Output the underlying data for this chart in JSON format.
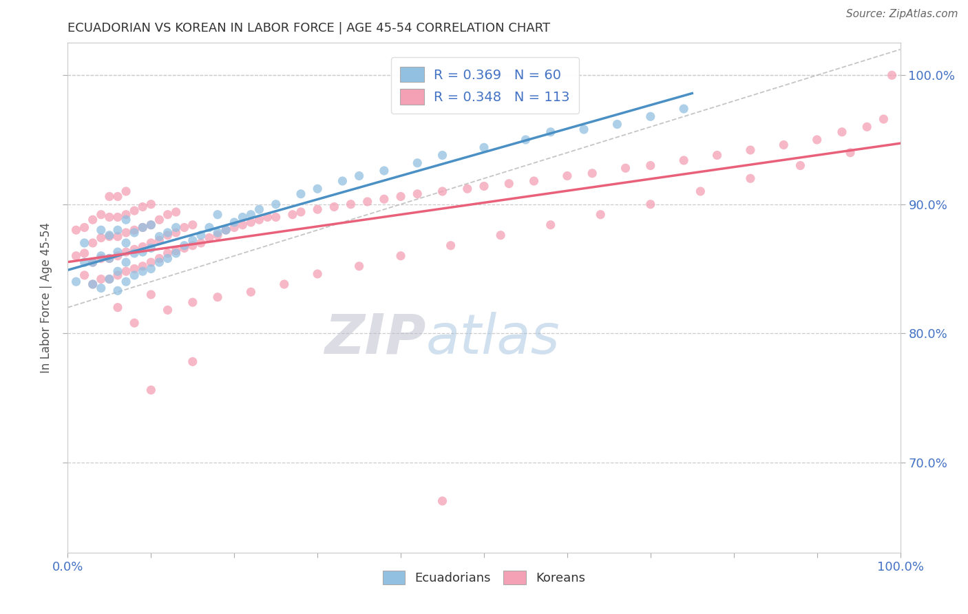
{
  "title": "ECUADORIAN VS KOREAN IN LABOR FORCE | AGE 45-54 CORRELATION CHART",
  "source_text": "Source: ZipAtlas.com",
  "ylabel": "In Labor Force | Age 45-54",
  "xlim": [
    0.0,
    1.0
  ],
  "ylim": [
    0.63,
    1.025
  ],
  "yticks": [
    0.7,
    0.8,
    0.9,
    1.0
  ],
  "ytick_labels": [
    "70.0%",
    "80.0%",
    "90.0%",
    "100.0%"
  ],
  "legend_r_ecuadorian": "R = 0.369",
  "legend_n_ecuadorian": "N = 60",
  "legend_r_korean": "R = 0.348",
  "legend_n_korean": "N = 113",
  "legend_label_ecuadorian": "Ecuadorians",
  "legend_label_korean": "Koreans",
  "color_ecuadorian": "#92C0E0",
  "color_korean": "#F4A0B5",
  "color_ecuadorian_line": "#4A90C4",
  "color_korean_line": "#E8607A",
  "color_ref_line": "#BBBBBB",
  "watermark_zip": "ZIP",
  "watermark_atlas": "atlas",
  "background_color": "#FFFFFF",
  "ecu_x": [
    0.01,
    0.02,
    0.02,
    0.03,
    0.03,
    0.04,
    0.04,
    0.04,
    0.05,
    0.05,
    0.05,
    0.06,
    0.06,
    0.06,
    0.06,
    0.07,
    0.07,
    0.07,
    0.07,
    0.08,
    0.08,
    0.08,
    0.09,
    0.09,
    0.09,
    0.1,
    0.1,
    0.1,
    0.11,
    0.11,
    0.12,
    0.12,
    0.13,
    0.13,
    0.14,
    0.15,
    0.16,
    0.17,
    0.18,
    0.18,
    0.19,
    0.2,
    0.21,
    0.22,
    0.23,
    0.25,
    0.28,
    0.3,
    0.33,
    0.35,
    0.38,
    0.42,
    0.45,
    0.5,
    0.55,
    0.58,
    0.62,
    0.66,
    0.7,
    0.74
  ],
  "ecu_y": [
    0.84,
    0.855,
    0.87,
    0.838,
    0.855,
    0.835,
    0.86,
    0.88,
    0.842,
    0.858,
    0.876,
    0.833,
    0.848,
    0.863,
    0.88,
    0.84,
    0.855,
    0.87,
    0.888,
    0.845,
    0.862,
    0.878,
    0.848,
    0.863,
    0.882,
    0.85,
    0.866,
    0.884,
    0.855,
    0.875,
    0.858,
    0.878,
    0.862,
    0.882,
    0.868,
    0.872,
    0.876,
    0.882,
    0.878,
    0.892,
    0.88,
    0.886,
    0.89,
    0.892,
    0.896,
    0.9,
    0.908,
    0.912,
    0.918,
    0.922,
    0.926,
    0.932,
    0.938,
    0.944,
    0.95,
    0.956,
    0.958,
    0.962,
    0.968,
    0.974
  ],
  "kor_x": [
    0.01,
    0.01,
    0.02,
    0.02,
    0.02,
    0.03,
    0.03,
    0.03,
    0.03,
    0.04,
    0.04,
    0.04,
    0.04,
    0.05,
    0.05,
    0.05,
    0.05,
    0.05,
    0.06,
    0.06,
    0.06,
    0.06,
    0.06,
    0.07,
    0.07,
    0.07,
    0.07,
    0.07,
    0.08,
    0.08,
    0.08,
    0.08,
    0.09,
    0.09,
    0.09,
    0.09,
    0.1,
    0.1,
    0.1,
    0.1,
    0.11,
    0.11,
    0.11,
    0.12,
    0.12,
    0.12,
    0.13,
    0.13,
    0.13,
    0.14,
    0.14,
    0.15,
    0.15,
    0.16,
    0.17,
    0.18,
    0.19,
    0.2,
    0.21,
    0.22,
    0.23,
    0.24,
    0.25,
    0.27,
    0.28,
    0.3,
    0.32,
    0.34,
    0.36,
    0.38,
    0.4,
    0.42,
    0.45,
    0.48,
    0.5,
    0.53,
    0.56,
    0.6,
    0.63,
    0.67,
    0.7,
    0.74,
    0.78,
    0.82,
    0.86,
    0.9,
    0.93,
    0.96,
    0.98,
    0.99,
    0.06,
    0.08,
    0.1,
    0.12,
    0.15,
    0.18,
    0.22,
    0.26,
    0.3,
    0.35,
    0.4,
    0.46,
    0.52,
    0.58,
    0.64,
    0.7,
    0.76,
    0.82,
    0.88,
    0.94,
    0.1,
    0.15,
    0.45
  ],
  "kor_y": [
    0.86,
    0.88,
    0.845,
    0.862,
    0.882,
    0.838,
    0.855,
    0.87,
    0.888,
    0.842,
    0.858,
    0.874,
    0.892,
    0.842,
    0.858,
    0.875,
    0.89,
    0.906,
    0.845,
    0.86,
    0.875,
    0.89,
    0.906,
    0.848,
    0.863,
    0.878,
    0.892,
    0.91,
    0.85,
    0.865,
    0.88,
    0.895,
    0.852,
    0.867,
    0.882,
    0.898,
    0.855,
    0.87,
    0.884,
    0.9,
    0.858,
    0.872,
    0.888,
    0.862,
    0.876,
    0.892,
    0.864,
    0.878,
    0.894,
    0.866,
    0.882,
    0.868,
    0.884,
    0.87,
    0.874,
    0.876,
    0.88,
    0.882,
    0.884,
    0.886,
    0.888,
    0.89,
    0.89,
    0.892,
    0.894,
    0.896,
    0.898,
    0.9,
    0.902,
    0.904,
    0.906,
    0.908,
    0.91,
    0.912,
    0.914,
    0.916,
    0.918,
    0.922,
    0.924,
    0.928,
    0.93,
    0.934,
    0.938,
    0.942,
    0.946,
    0.95,
    0.956,
    0.96,
    0.966,
    1.0,
    0.82,
    0.808,
    0.83,
    0.818,
    0.824,
    0.828,
    0.832,
    0.838,
    0.846,
    0.852,
    0.86,
    0.868,
    0.876,
    0.884,
    0.892,
    0.9,
    0.91,
    0.92,
    0.93,
    0.94,
    0.756,
    0.778,
    0.67
  ]
}
